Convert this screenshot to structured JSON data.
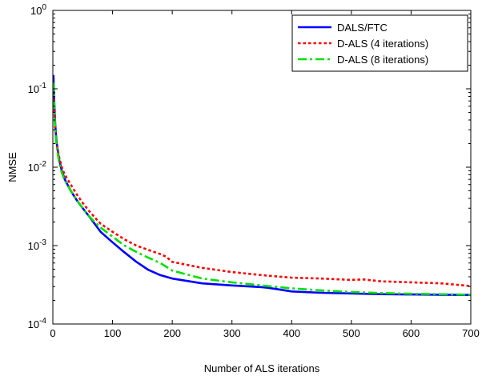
{
  "chart_data": {
    "type": "line",
    "xlabel": "Number of ALS iterations",
    "ylabel": "NMSE",
    "xlim": [
      0,
      700
    ],
    "ylim": [
      0.0001,
      1
    ],
    "yscale": "log",
    "grid": false,
    "legend_position": "top-right",
    "x_ticks": [
      "0",
      "100",
      "200",
      "300",
      "400",
      "500",
      "600",
      "700"
    ],
    "y_ticks": [
      {
        "base": "10",
        "exp": "-4"
      },
      {
        "base": "10",
        "exp": "-3"
      },
      {
        "base": "10",
        "exp": "-2"
      },
      {
        "base": "10",
        "exp": "-1"
      },
      {
        "base": "10",
        "exp": "0"
      }
    ],
    "series": [
      {
        "name": "DALS/FTC",
        "color": "#0000ff",
        "style": "solid",
        "x": [
          1,
          2,
          4,
          6,
          10,
          15,
          20,
          30,
          40,
          50,
          60,
          70,
          80,
          100,
          120,
          140,
          160,
          180,
          200,
          250,
          300,
          350,
          360,
          380,
          400,
          450,
          500,
          550,
          600,
          650,
          700
        ],
        "y": [
          0.15,
          0.08,
          0.035,
          0.022,
          0.013,
          0.009,
          0.007,
          0.005,
          0.0038,
          0.003,
          0.0024,
          0.0019,
          0.0015,
          0.0011,
          0.00082,
          0.00062,
          0.00049,
          0.00042,
          0.00038,
          0.00033,
          0.00031,
          0.000295,
          0.00029,
          0.000275,
          0.00026,
          0.00025,
          0.000245,
          0.00024,
          0.000238,
          0.000236,
          0.000235
        ]
      },
      {
        "name": "D-ALS (4 iterations)",
        "color": "#ff0000",
        "style": "dotted",
        "x": [
          1,
          2,
          4,
          6,
          10,
          15,
          20,
          30,
          40,
          50,
          60,
          70,
          80,
          100,
          120,
          140,
          160,
          180,
          190,
          200,
          250,
          300,
          350,
          400,
          450,
          500,
          520,
          550,
          600,
          650,
          700
        ],
        "y": [
          0.1,
          0.06,
          0.03,
          0.021,
          0.014,
          0.01,
          0.008,
          0.006,
          0.0045,
          0.0035,
          0.0028,
          0.0023,
          0.0019,
          0.0015,
          0.0012,
          0.001,
          0.00088,
          0.00078,
          0.00072,
          0.00062,
          0.00052,
          0.00046,
          0.00042,
          0.00039,
          0.00038,
          0.000365,
          0.00037,
          0.00035,
          0.00034,
          0.00033,
          0.000305
        ]
      },
      {
        "name": "D-ALS (8 iterations)",
        "color": "#00e000",
        "style": "dashdot",
        "x": [
          1,
          2,
          4,
          6,
          10,
          15,
          20,
          30,
          40,
          50,
          60,
          70,
          80,
          100,
          120,
          140,
          160,
          180,
          200,
          250,
          300,
          350,
          400,
          450,
          500,
          550,
          600,
          650,
          700
        ],
        "y": [
          0.12,
          0.07,
          0.03,
          0.02,
          0.012,
          0.0085,
          0.0068,
          0.005,
          0.0038,
          0.003,
          0.0024,
          0.002,
          0.0017,
          0.0013,
          0.001,
          0.00083,
          0.0007,
          0.0006,
          0.00048,
          0.00038,
          0.00034,
          0.00031,
          0.000285,
          0.000268,
          0.000256,
          0.000248,
          0.000243,
          0.00024,
          0.000236
        ]
      }
    ]
  }
}
